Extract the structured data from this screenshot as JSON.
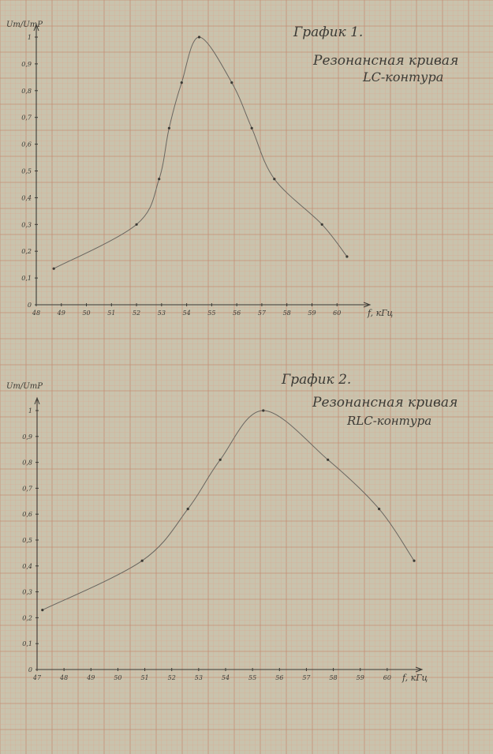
{
  "colors": {
    "paper": "#c9c3ad",
    "grid_minor": "#d9ac94",
    "grid_major": "#c58f76",
    "ink": "#3c3a35",
    "curve": "#6a6660"
  },
  "chart_data": [
    {
      "type": "line",
      "title": "График 1.",
      "subtitle_lines": [
        "Резонансная кривая",
        "LC-контура"
      ],
      "ylabel": "Um/UmP",
      "xlabel": "f, кГц",
      "xlim": [
        48,
        61
      ],
      "ylim": [
        0,
        1
      ],
      "x_ticks": [
        "48",
        "49",
        "50",
        "51",
        "52",
        "53",
        "54",
        "55",
        "56",
        "57",
        "58",
        "59",
        "60"
      ],
      "y_ticks": [
        "0",
        "0,1",
        "0,2",
        "0,3",
        "0,4",
        "0,5",
        "0,6",
        "0,7",
        "0,8",
        "0,9",
        "1"
      ],
      "grid": true,
      "series": [
        {
          "x": [
            48.7,
            52.0,
            52.9,
            53.3,
            53.8,
            54.5,
            55.8,
            56.6,
            57.5,
            59.4,
            60.4
          ],
          "y": [
            0.135,
            0.3,
            0.47,
            0.66,
            0.83,
            1.0,
            0.83,
            0.66,
            0.47,
            0.3,
            0.18
          ]
        }
      ]
    },
    {
      "type": "line",
      "title": "График 2.",
      "subtitle_lines": [
        "Резонансная кривая",
        "RLC-контура"
      ],
      "ylabel": "Um/UmP",
      "xlabel": "f, кГц",
      "xlim": [
        47,
        61
      ],
      "ylim": [
        0,
        1
      ],
      "x_ticks": [
        "47",
        "48",
        "49",
        "50",
        "51",
        "52",
        "53",
        "54",
        "55",
        "56",
        "57",
        "58",
        "59",
        "60"
      ],
      "y_ticks": [
        "0",
        "0,1",
        "0,2",
        "0,3",
        "0,4",
        "0,5",
        "0,6",
        "0,7",
        "0,8",
        "0,9",
        "1"
      ],
      "grid": true,
      "series": [
        {
          "x": [
            47.2,
            50.9,
            52.6,
            53.8,
            55.4,
            57.8,
            59.7,
            61.0
          ],
          "y": [
            0.23,
            0.42,
            0.62,
            0.81,
            1.0,
            0.81,
            0.62,
            0.42
          ]
        }
      ]
    }
  ]
}
